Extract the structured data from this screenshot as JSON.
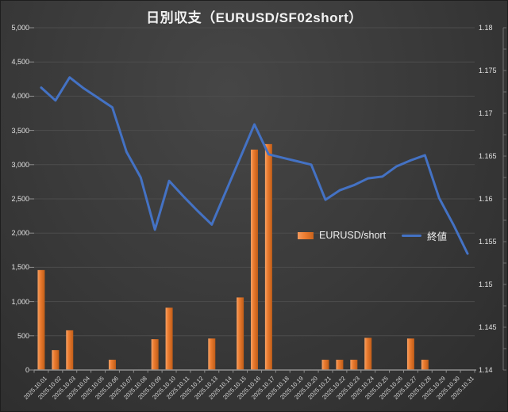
{
  "chart_data": {
    "type": "bar+line combo",
    "title": "日別収支（EURUSD/SF02short）",
    "categories": [
      "2025.10.01",
      "2025.10.02",
      "2025.10.03",
      "2025.10.04",
      "2025.10.05",
      "2025.10.06",
      "2025.10.07",
      "2025.10.08",
      "2025.10.09",
      "2025.10.10",
      "2025.10.11",
      "2025.10.12",
      "2025.10.13",
      "2025.10.14",
      "2025.10.15",
      "2025.10.16",
      "2025.10.17",
      "2025.10.18",
      "2025.10.19",
      "2025.10.20",
      "2025.10.21",
      "2025.10.22",
      "2025.10.23",
      "2025.10.24",
      "2025.10.25",
      "2025.10.26",
      "2025.10.27",
      "2025.10.28",
      "2025.10.29",
      "2025.10.30",
      "2025.10.31"
    ],
    "series": [
      {
        "name": "EURUSD/short",
        "type": "bar",
        "axis": "left",
        "color": "#ED7D31",
        "values": [
          1460,
          290,
          580,
          null,
          null,
          150,
          null,
          null,
          450,
          910,
          null,
          null,
          460,
          null,
          1060,
          3220,
          3300,
          null,
          null,
          null,
          150,
          150,
          150,
          470,
          null,
          null,
          460,
          150,
          null,
          null,
          null
        ]
      },
      {
        "name": "終値",
        "type": "line",
        "axis": "right",
        "color": "#4472C4",
        "values": [
          1.173,
          1.1715,
          1.1742,
          1.1729,
          1.1718,
          1.1707,
          1.1655,
          1.1625,
          1.1564,
          1.1621,
          1.1603,
          1.1586,
          1.157,
          1.1609,
          1.1648,
          1.1687,
          1.1652,
          1.1648,
          1.1644,
          1.164,
          1.1599,
          1.161,
          1.1616,
          1.1624,
          1.1626,
          1.1638,
          1.1645,
          1.1651,
          1.1601,
          1.157,
          1.1536
        ]
      }
    ],
    "left_axis": {
      "min": 0,
      "max": 5000,
      "step": 500,
      "tick_labels": [
        "0",
        "500",
        "1,000",
        "1,500",
        "2,000",
        "2,500",
        "3,000",
        "3,500",
        "4,000",
        "4,500",
        "5,000"
      ]
    },
    "right_axis": {
      "min": 1.14,
      "max": 1.18,
      "step": 0.005,
      "tick_labels": [
        "1.14",
        "1.145",
        "1.15",
        "1.155",
        "1.16",
        "1.165",
        "1.17",
        "1.175",
        "1.18"
      ]
    },
    "grid": "horizontal",
    "legend_position": "inside-center-right",
    "colors": {
      "background": "#3a3a3a",
      "grid": "#4c4c4c",
      "axis_line": "#8f8f8f",
      "text": "#e2e2e2"
    }
  }
}
